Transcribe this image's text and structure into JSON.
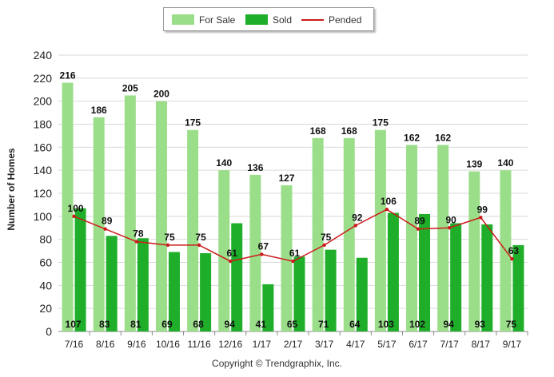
{
  "legend": {
    "for_sale": "For Sale",
    "sold": "Sold",
    "pended": "Pended"
  },
  "copyright": "Copyright © Trendgraphix, Inc.",
  "chart_data": {
    "type": "bar",
    "categories": [
      "7/16",
      "8/16",
      "9/16",
      "10/16",
      "11/16",
      "12/16",
      "1/17",
      "2/17",
      "3/17",
      "4/17",
      "5/17",
      "6/17",
      "7/17",
      "8/17",
      "9/17"
    ],
    "series": [
      {
        "name": "For Sale",
        "kind": "bar",
        "color": "#9bde8a",
        "values": [
          216,
          186,
          205,
          200,
          175,
          140,
          136,
          127,
          168,
          168,
          175,
          162,
          162,
          139,
          140
        ]
      },
      {
        "name": "Sold",
        "kind": "bar",
        "color": "#1fae2a",
        "values": [
          107,
          83,
          81,
          69,
          68,
          94,
          41,
          65,
          71,
          64,
          103,
          102,
          94,
          93,
          75
        ]
      },
      {
        "name": "Pended",
        "kind": "line",
        "color": "#cc1a1a",
        "values": [
          100,
          89,
          78,
          75,
          75,
          61,
          67,
          61,
          75,
          92,
          106,
          89,
          90,
          99,
          63
        ]
      }
    ],
    "ylabel": "Number of Homes",
    "xlabel": "",
    "ylim": [
      0,
      240
    ],
    "yticks": [
      0,
      20,
      40,
      60,
      80,
      100,
      120,
      140,
      160,
      180,
      200,
      220,
      240
    ],
    "grid": true,
    "legend_position": "top-center"
  }
}
